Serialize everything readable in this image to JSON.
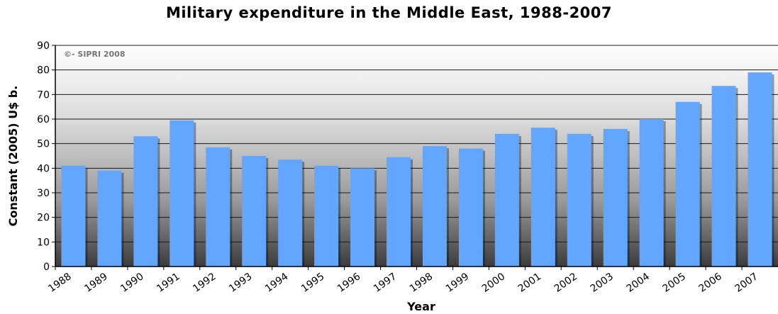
{
  "chart_data": {
    "type": "bar",
    "title": "Military expenditure in the Middle East, 1988-2007",
    "xlabel": "Year",
    "ylabel": "Constant (2005) U$ b.",
    "ylim": [
      0,
      90
    ],
    "yticks": [
      0,
      10,
      20,
      30,
      40,
      50,
      60,
      70,
      80,
      90
    ],
    "grid": true,
    "annotation": "©- SIPRI 2008",
    "bar_color": "#63a6ff",
    "categories": [
      "1988",
      "1989",
      "1990",
      "1991",
      "1992",
      "1993",
      "1994",
      "1995",
      "1996",
      "1997",
      "1998",
      "1999",
      "2000",
      "2001",
      "2002",
      "2003",
      "2004",
      "2005",
      "2006",
      "2007"
    ],
    "values": [
      41,
      39,
      53,
      59.5,
      48.5,
      45,
      43.5,
      41,
      40,
      44.5,
      49,
      48,
      54,
      56.5,
      54,
      56,
      60,
      67,
      73.5,
      79
    ]
  }
}
